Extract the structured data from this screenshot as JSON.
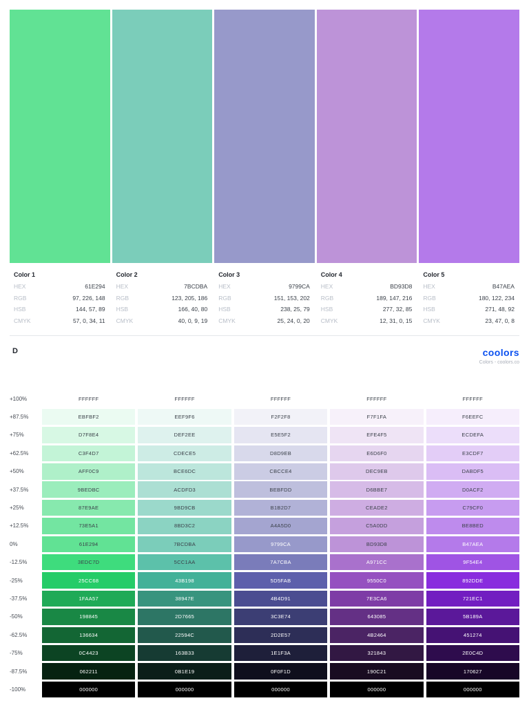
{
  "document": {
    "title": "D",
    "brand": {
      "logo_text": "coolors",
      "tagline": "Colors - coolors.co",
      "logo_color": "#0A50F0"
    }
  },
  "palette": {
    "field_labels": [
      "HEX",
      "RGB",
      "HSB",
      "CMYK"
    ],
    "colors": [
      {
        "name": "Color 1",
        "hex": "61E294",
        "rgb": "97, 226, 148",
        "hsb": "144, 57, 89",
        "cmyk": "57, 0, 34, 11"
      },
      {
        "name": "Color 2",
        "hex": "7BCDBA",
        "rgb": "123, 205, 186",
        "hsb": "166, 40, 80",
        "cmyk": "40, 0, 9, 19"
      },
      {
        "name": "Color 3",
        "hex": "9799CA",
        "rgb": "151, 153, 202",
        "hsb": "238, 25, 79",
        "cmyk": "25, 24, 0, 20"
      },
      {
        "name": "Color 4",
        "hex": "BD93D8",
        "rgb": "189, 147, 216",
        "hsb": "277, 32, 85",
        "cmyk": "12, 31, 0, 15"
      },
      {
        "name": "Color 5",
        "hex": "B47AEA",
        "rgb": "180, 122, 234",
        "hsb": "271, 48, 92",
        "cmyk": "23, 47, 0, 8"
      }
    ]
  },
  "shades_table": {
    "rows": [
      {
        "percent": "+100%",
        "hexes": [
          "FFFFFF",
          "FFFFFF",
          "FFFFFF",
          "FFFFFF",
          "FFFFFF"
        ]
      },
      {
        "percent": "+87.5%",
        "hexes": [
          "EBFBF2",
          "EEF9F6",
          "F2F2F8",
          "F7F1FA",
          "F6EEFC"
        ]
      },
      {
        "percent": "+75%",
        "hexes": [
          "D7F8E4",
          "DEF2EE",
          "E5E5F2",
          "EFE4F5",
          "ECDEFA"
        ]
      },
      {
        "percent": "+62.5%",
        "hexes": [
          "C3F4D7",
          "CDECE5",
          "D8D9EB",
          "E6D6F0",
          "E3CDF7"
        ]
      },
      {
        "percent": "+50%",
        "hexes": [
          "AFF0C9",
          "BCE6DC",
          "CBCCE4",
          "DEC9EB",
          "DABDF5"
        ]
      },
      {
        "percent": "+37.5%",
        "hexes": [
          "9BEDBC",
          "ACDFD3",
          "BEBFDD",
          "D6BBE7",
          "D0ACF2"
        ]
      },
      {
        "percent": "+25%",
        "hexes": [
          "87E9AE",
          "9BD9CB",
          "B1B2D7",
          "CEADE2",
          "C79CF0"
        ]
      },
      {
        "percent": "+12.5%",
        "hexes": [
          "73E5A1",
          "8BD3C2",
          "A4A5D0",
          "C5A0DD",
          "BE8BED"
        ]
      },
      {
        "percent": "0%",
        "hexes": [
          "61E294",
          "7BCDBA",
          "9799CA",
          "BD93D8",
          "B47AEA"
        ]
      },
      {
        "percent": "-12.5%",
        "hexes": [
          "3EDC7D",
          "5CC1AA",
          "7A7CBA",
          "A971CC",
          "9F54E4"
        ]
      },
      {
        "percent": "-25%",
        "hexes": [
          "25CC68",
          "43B198",
          "5D5FAB",
          "9550C0",
          "892DDE"
        ]
      },
      {
        "percent": "-37.5%",
        "hexes": [
          "1FAA57",
          "38947E",
          "4B4D91",
          "7E3CA6",
          "721EC1"
        ]
      },
      {
        "percent": "-50%",
        "hexes": [
          "198845",
          "2D7665",
          "3C3E74",
          "643085",
          "5B189A"
        ]
      },
      {
        "percent": "-62.5%",
        "hexes": [
          "136634",
          "22594C",
          "2D2E57",
          "4B2464",
          "451274"
        ]
      },
      {
        "percent": "-75%",
        "hexes": [
          "0C4423",
          "163B33",
          "1E1F3A",
          "321843",
          "2E0C4D"
        ]
      },
      {
        "percent": "-87.5%",
        "hexes": [
          "062211",
          "0B1E19",
          "0F0F1D",
          "190C21",
          "170627"
        ]
      },
      {
        "percent": "-100%",
        "hexes": [
          "000000",
          "000000",
          "000000",
          "000000",
          "000000"
        ]
      }
    ]
  }
}
